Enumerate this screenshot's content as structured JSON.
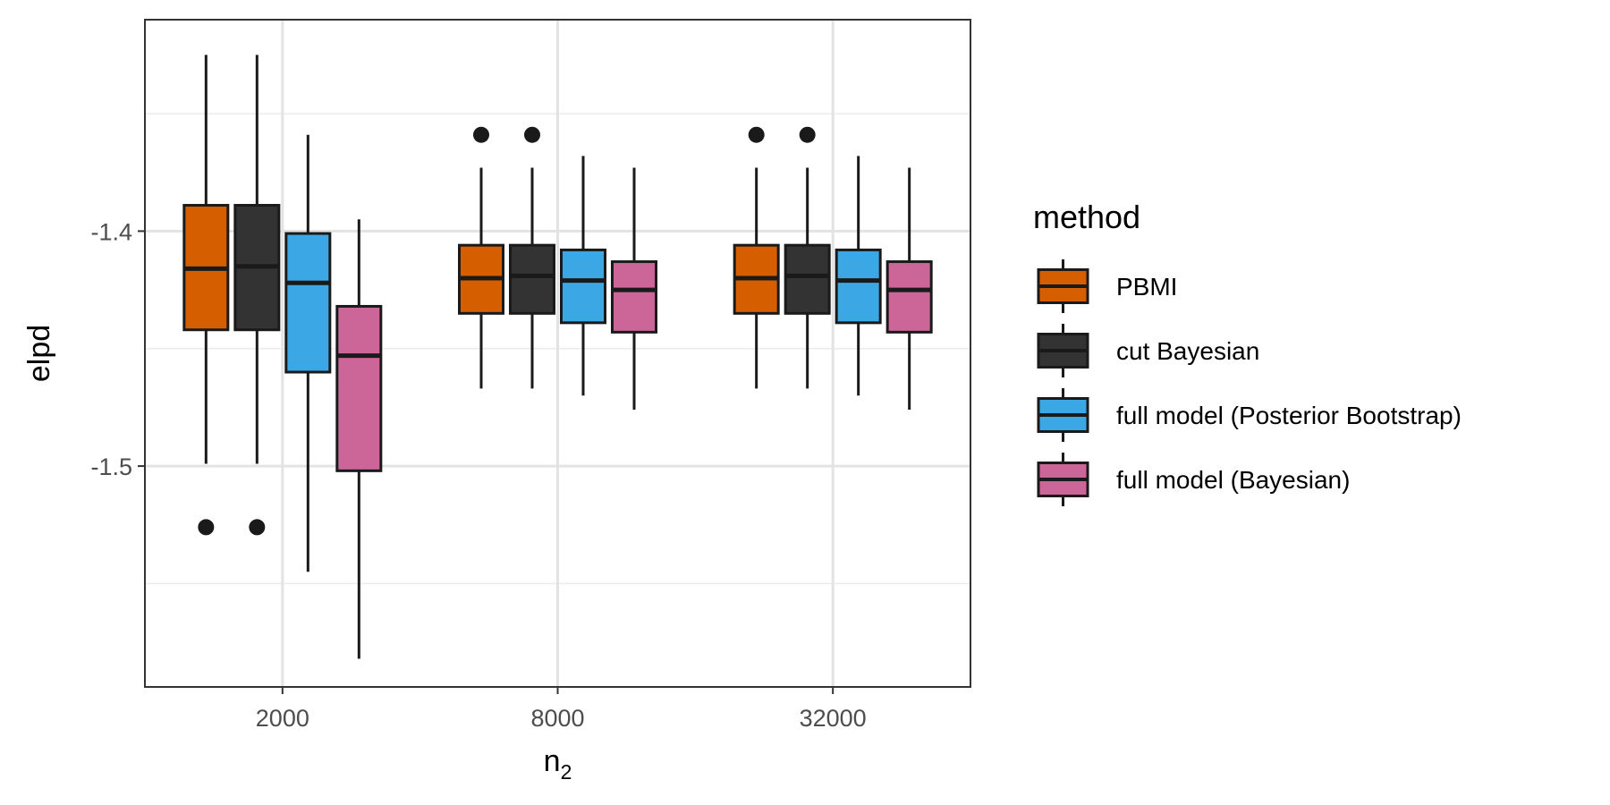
{
  "chart_data": {
    "type": "boxplot",
    "xlabel": "n",
    "xlabel_subscript": "2",
    "ylabel": "elpd",
    "categories": [
      "2000",
      "8000",
      "32000"
    ],
    "ylim": [
      -1.594,
      -1.31
    ],
    "yticks": [
      -1.4,
      -1.5
    ],
    "ytick_labels": [
      "-1.4",
      "-1.5"
    ],
    "grid": true,
    "legend": {
      "title": "method",
      "position": "right",
      "entries": [
        "PBMI",
        "cut Bayesian",
        "full model (Posterior Bootstrap)",
        "full model (Bayesian)"
      ]
    },
    "series": [
      {
        "name": "PBMI",
        "color": "#D55E00",
        "boxes": [
          {
            "lower_whisker": -1.499,
            "q1": -1.442,
            "median": -1.416,
            "q3": -1.389,
            "upper_whisker": -1.325,
            "outliers": [
              -1.526
            ]
          },
          {
            "lower_whisker": -1.467,
            "q1": -1.435,
            "median": -1.42,
            "q3": -1.406,
            "upper_whisker": -1.373,
            "outliers": [
              -1.359
            ]
          },
          {
            "lower_whisker": -1.467,
            "q1": -1.435,
            "median": -1.42,
            "q3": -1.406,
            "upper_whisker": -1.373,
            "outliers": [
              -1.359
            ]
          }
        ]
      },
      {
        "name": "cut Bayesian",
        "color": "#333333",
        "boxes": [
          {
            "lower_whisker": -1.499,
            "q1": -1.442,
            "median": -1.415,
            "q3": -1.389,
            "upper_whisker": -1.325,
            "outliers": [
              -1.526
            ]
          },
          {
            "lower_whisker": -1.467,
            "q1": -1.435,
            "median": -1.419,
            "q3": -1.406,
            "upper_whisker": -1.373,
            "outliers": [
              -1.359
            ]
          },
          {
            "lower_whisker": -1.467,
            "q1": -1.435,
            "median": -1.419,
            "q3": -1.406,
            "upper_whisker": -1.373,
            "outliers": [
              -1.359
            ]
          }
        ]
      },
      {
        "name": "full model (Posterior Bootstrap)",
        "color": "#3BA7E5",
        "boxes": [
          {
            "lower_whisker": -1.545,
            "q1": -1.46,
            "median": -1.422,
            "q3": -1.401,
            "upper_whisker": -1.359,
            "outliers": []
          },
          {
            "lower_whisker": -1.47,
            "q1": -1.439,
            "median": -1.421,
            "q3": -1.408,
            "upper_whisker": -1.368,
            "outliers": []
          },
          {
            "lower_whisker": -1.47,
            "q1": -1.439,
            "median": -1.421,
            "q3": -1.408,
            "upper_whisker": -1.368,
            "outliers": []
          }
        ]
      },
      {
        "name": "full model (Bayesian)",
        "color": "#CC6699",
        "boxes": [
          {
            "lower_whisker": -1.582,
            "q1": -1.502,
            "median": -1.453,
            "q3": -1.432,
            "upper_whisker": -1.395,
            "outliers": []
          },
          {
            "lower_whisker": -1.476,
            "q1": -1.443,
            "median": -1.425,
            "q3": -1.413,
            "upper_whisker": -1.373,
            "outliers": []
          },
          {
            "lower_whisker": -1.476,
            "q1": -1.443,
            "median": -1.425,
            "q3": -1.413,
            "upper_whisker": -1.373,
            "outliers": []
          }
        ]
      }
    ]
  }
}
